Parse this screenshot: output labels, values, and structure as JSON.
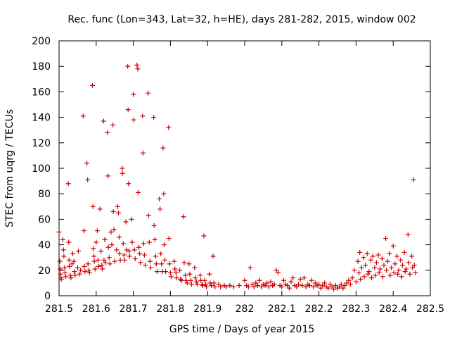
{
  "chart_data": {
    "type": "scatter",
    "title": "Rec. func (Lon=343, Lat=32, h=HE), days 281-282, 2015, window 002",
    "xlabel": "GPS time / Days of year 2015",
    "ylabel": "STEC from uqrg / TECUs",
    "xlim": [
      281.5,
      282.5
    ],
    "ylim": [
      0,
      200
    ],
    "xticks": [
      281.5,
      281.6,
      281.7,
      281.8,
      281.9,
      282,
      282.1,
      282.2,
      282.3,
      282.4,
      282.5
    ],
    "xtick_labels": [
      "281.5",
      "281.6",
      "281.7",
      "281.8",
      "281.9",
      "282",
      "282.1",
      "282.2",
      "282.3",
      "282.4",
      "282.5"
    ],
    "yticks": [
      0,
      20,
      40,
      60,
      80,
      100,
      120,
      140,
      160,
      180,
      200
    ],
    "ytick_labels": [
      "0",
      "20",
      "40",
      "60",
      "80",
      "100",
      "120",
      "140",
      "160",
      "180",
      "200"
    ],
    "grid": false,
    "marker": "+",
    "color": "#cc0000",
    "points": [
      [
        281.5,
        50
      ],
      [
        281.502,
        27
      ],
      [
        281.503,
        21
      ],
      [
        281.504,
        17
      ],
      [
        281.505,
        14
      ],
      [
        281.506,
        13
      ],
      [
        281.51,
        44
      ],
      [
        281.512,
        36
      ],
      [
        281.513,
        31
      ],
      [
        281.515,
        22
      ],
      [
        281.516,
        18
      ],
      [
        281.518,
        15
      ],
      [
        281.525,
        88
      ],
      [
        281.526,
        42
      ],
      [
        281.527,
        28
      ],
      [
        281.528,
        23
      ],
      [
        281.53,
        16
      ],
      [
        281.532,
        14
      ],
      [
        281.535,
        25
      ],
      [
        281.537,
        33
      ],
      [
        281.54,
        27
      ],
      [
        281.541,
        19
      ],
      [
        281.543,
        16
      ],
      [
        281.55,
        22
      ],
      [
        281.552,
        35
      ],
      [
        281.555,
        17
      ],
      [
        281.558,
        20
      ],
      [
        281.565,
        141
      ],
      [
        281.567,
        51
      ],
      [
        281.568,
        23
      ],
      [
        281.57,
        19
      ],
      [
        281.575,
        104
      ],
      [
        281.577,
        91
      ],
      [
        281.578,
        25
      ],
      [
        281.58,
        20
      ],
      [
        281.582,
        18
      ],
      [
        281.59,
        165
      ],
      [
        281.591,
        70
      ],
      [
        281.592,
        37
      ],
      [
        281.594,
        31
      ],
      [
        281.595,
        27
      ],
      [
        281.597,
        21
      ],
      [
        281.6,
        42
      ],
      [
        281.603,
        51
      ],
      [
        281.605,
        28
      ],
      [
        281.607,
        23
      ],
      [
        281.61,
        68
      ],
      [
        281.613,
        35
      ],
      [
        281.615,
        24
      ],
      [
        281.617,
        21
      ],
      [
        281.62,
        137
      ],
      [
        281.621,
        28
      ],
      [
        281.623,
        44
      ],
      [
        281.625,
        26
      ],
      [
        281.63,
        128
      ],
      [
        281.632,
        94
      ],
      [
        281.633,
        38
      ],
      [
        281.635,
        30
      ],
      [
        281.637,
        25
      ],
      [
        281.64,
        50
      ],
      [
        281.642,
        40
      ],
      [
        281.645,
        134
      ],
      [
        281.646,
        66
      ],
      [
        281.648,
        52
      ],
      [
        281.65,
        27
      ],
      [
        281.655,
        36
      ],
      [
        281.658,
        70
      ],
      [
        281.66,
        65
      ],
      [
        281.662,
        46
      ],
      [
        281.663,
        33
      ],
      [
        281.665,
        28
      ],
      [
        281.67,
        100
      ],
      [
        281.671,
        96
      ],
      [
        281.673,
        41
      ],
      [
        281.675,
        32
      ],
      [
        281.677,
        28
      ],
      [
        281.68,
        58
      ],
      [
        281.682,
        36
      ],
      [
        281.685,
        180
      ],
      [
        281.686,
        146
      ],
      [
        281.687,
        88
      ],
      [
        281.689,
        35
      ],
      [
        281.69,
        31
      ],
      [
        281.695,
        60
      ],
      [
        281.697,
        42
      ],
      [
        281.7,
        158
      ],
      [
        281.701,
        138
      ],
      [
        281.703,
        36
      ],
      [
        281.705,
        29
      ],
      [
        281.71,
        181
      ],
      [
        281.712,
        178
      ],
      [
        281.713,
        81
      ],
      [
        281.715,
        38
      ],
      [
        281.717,
        33
      ],
      [
        281.719,
        26
      ],
      [
        281.725,
        141
      ],
      [
        281.726,
        112
      ],
      [
        281.728,
        41
      ],
      [
        281.73,
        32
      ],
      [
        281.732,
        24
      ],
      [
        281.74,
        159
      ],
      [
        281.741,
        63
      ],
      [
        281.743,
        42
      ],
      [
        281.745,
        27
      ],
      [
        281.747,
        22
      ],
      [
        281.755,
        140
      ],
      [
        281.756,
        55
      ],
      [
        281.758,
        44
      ],
      [
        281.76,
        31
      ],
      [
        281.762,
        25
      ],
      [
        281.764,
        19
      ],
      [
        281.77,
        76
      ],
      [
        281.772,
        68
      ],
      [
        281.774,
        33
      ],
      [
        281.776,
        25
      ],
      [
        281.778,
        19
      ],
      [
        281.78,
        116
      ],
      [
        281.782,
        80
      ],
      [
        281.783,
        40
      ],
      [
        281.785,
        28
      ],
      [
        281.787,
        19
      ],
      [
        281.795,
        132
      ],
      [
        281.796,
        45
      ],
      [
        281.798,
        25
      ],
      [
        281.8,
        18
      ],
      [
        281.802,
        15
      ],
      [
        281.81,
        27
      ],
      [
        281.812,
        21
      ],
      [
        281.815,
        18
      ],
      [
        281.817,
        14
      ],
      [
        281.825,
        20
      ],
      [
        281.827,
        13
      ],
      [
        281.83,
        12
      ],
      [
        281.835,
        62
      ],
      [
        281.837,
        26
      ],
      [
        281.84,
        16
      ],
      [
        281.842,
        12
      ],
      [
        281.845,
        10
      ],
      [
        281.85,
        25
      ],
      [
        281.852,
        17
      ],
      [
        281.855,
        12
      ],
      [
        281.857,
        9
      ],
      [
        281.865,
        22
      ],
      [
        281.867,
        14
      ],
      [
        281.87,
        11
      ],
      [
        281.872,
        9
      ],
      [
        281.88,
        16
      ],
      [
        281.882,
        12
      ],
      [
        281.885,
        9
      ],
      [
        281.887,
        8
      ],
      [
        281.89,
        47
      ],
      [
        281.892,
        12
      ],
      [
        281.895,
        9
      ],
      [
        281.897,
        7
      ],
      [
        281.905,
        17
      ],
      [
        281.907,
        10
      ],
      [
        281.91,
        8
      ],
      [
        281.915,
        31
      ],
      [
        281.917,
        10
      ],
      [
        281.92,
        7
      ],
      [
        281.93,
        9
      ],
      [
        281.935,
        7
      ],
      [
        281.945,
        8
      ],
      [
        281.95,
        7
      ],
      [
        281.96,
        8
      ],
      [
        281.97,
        7
      ],
      [
        281.985,
        8
      ],
      [
        282.0,
        12
      ],
      [
        282.005,
        8
      ],
      [
        282.01,
        7
      ],
      [
        282.015,
        22
      ],
      [
        282.02,
        9
      ],
      [
        282.025,
        7
      ],
      [
        282.03,
        10
      ],
      [
        282.035,
        8
      ],
      [
        282.04,
        12
      ],
      [
        282.045,
        7
      ],
      [
        282.05,
        9
      ],
      [
        282.055,
        8
      ],
      [
        282.06,
        10
      ],
      [
        282.065,
        7
      ],
      [
        282.07,
        11
      ],
      [
        282.075,
        8
      ],
      [
        282.08,
        9
      ],
      [
        282.085,
        20
      ],
      [
        282.09,
        18
      ],
      [
        282.095,
        8
      ],
      [
        282.1,
        7
      ],
      [
        282.105,
        12
      ],
      [
        282.11,
        9
      ],
      [
        282.115,
        8
      ],
      [
        282.12,
        6
      ],
      [
        282.125,
        11
      ],
      [
        282.13,
        14
      ],
      [
        282.135,
        8
      ],
      [
        282.14,
        7
      ],
      [
        282.145,
        9
      ],
      [
        282.15,
        13
      ],
      [
        282.155,
        8
      ],
      [
        282.16,
        14
      ],
      [
        282.165,
        7
      ],
      [
        282.17,
        9
      ],
      [
        282.175,
        8
      ],
      [
        282.18,
        12
      ],
      [
        282.185,
        7
      ],
      [
        282.19,
        10
      ],
      [
        282.195,
        8
      ],
      [
        282.2,
        9
      ],
      [
        282.205,
        6
      ],
      [
        282.21,
        8
      ],
      [
        282.215,
        10
      ],
      [
        282.22,
        7
      ],
      [
        282.225,
        6
      ],
      [
        282.23,
        9
      ],
      [
        282.235,
        7
      ],
      [
        282.24,
        5
      ],
      [
        282.245,
        8
      ],
      [
        282.25,
        6
      ],
      [
        282.255,
        7
      ],
      [
        282.26,
        9
      ],
      [
        282.265,
        6
      ],
      [
        282.27,
        8
      ],
      [
        282.275,
        10
      ],
      [
        282.28,
        12
      ],
      [
        282.285,
        9
      ],
      [
        282.29,
        14
      ],
      [
        282.295,
        20
      ],
      [
        282.3,
        11
      ],
      [
        282.305,
        27
      ],
      [
        282.308,
        18
      ],
      [
        282.31,
        34
      ],
      [
        282.312,
        13
      ],
      [
        282.315,
        22
      ],
      [
        282.32,
        30
      ],
      [
        282.322,
        15
      ],
      [
        282.325,
        24
      ],
      [
        282.33,
        33
      ],
      [
        282.332,
        17
      ],
      [
        282.335,
        19
      ],
      [
        282.34,
        28
      ],
      [
        282.342,
        14
      ],
      [
        282.345,
        31
      ],
      [
        282.35,
        22
      ],
      [
        282.352,
        16
      ],
      [
        282.355,
        26
      ],
      [
        282.36,
        32
      ],
      [
        282.362,
        18
      ],
      [
        282.365,
        21
      ],
      [
        282.37,
        29
      ],
      [
        282.372,
        15
      ],
      [
        282.375,
        24
      ],
      [
        282.38,
        45
      ],
      [
        282.382,
        20
      ],
      [
        282.385,
        27
      ],
      [
        282.39,
        33
      ],
      [
        282.392,
        16
      ],
      [
        282.395,
        22
      ],
      [
        282.4,
        39
      ],
      [
        282.402,
        18
      ],
      [
        282.405,
        25
      ],
      [
        282.41,
        31
      ],
      [
        282.412,
        17
      ],
      [
        282.415,
        20
      ],
      [
        282.42,
        28
      ],
      [
        282.422,
        15
      ],
      [
        282.425,
        24
      ],
      [
        282.43,
        34
      ],
      [
        282.432,
        19
      ],
      [
        282.435,
        21
      ],
      [
        282.44,
        48
      ],
      [
        282.442,
        26
      ],
      [
        282.445,
        17
      ],
      [
        282.45,
        31
      ],
      [
        282.452,
        22
      ],
      [
        282.455,
        91
      ],
      [
        282.457,
        24
      ],
      [
        282.46,
        18
      ]
    ]
  }
}
